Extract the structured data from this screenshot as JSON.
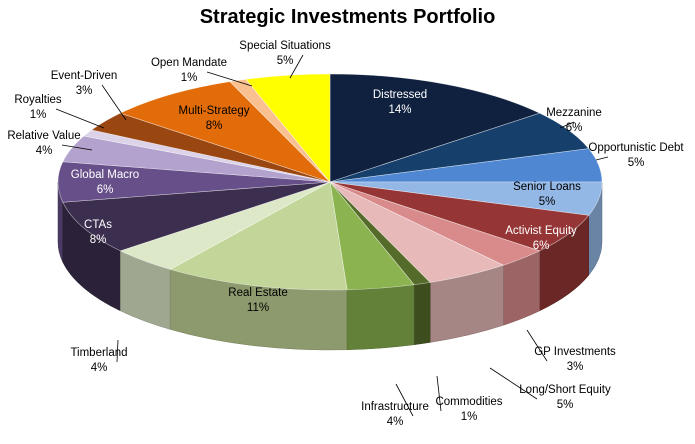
{
  "chart_data": {
    "type": "pie",
    "title": "Strategic Investments Portfolio",
    "slices": [
      {
        "label": "Distressed",
        "value": 14,
        "value_label": "14%",
        "color": "#10213f"
      },
      {
        "label": "Mezzanine",
        "value": 6,
        "value_label": "6%",
        "color": "#173f6c"
      },
      {
        "label": "Opportunistic Debt",
        "value": 5,
        "value_label": "5%",
        "color": "#4f87d2"
      },
      {
        "label": "Senior Loans",
        "value": 5,
        "value_label": "5%",
        "color": "#93b8e6"
      },
      {
        "label": "Activist Equity",
        "value": 6,
        "value_label": "6%",
        "color": "#953535"
      },
      {
        "label": "GP Investments",
        "value": 3,
        "value_label": "3%",
        "color": "#d98b8b"
      },
      {
        "label": "Long/Short Equity",
        "value": 5,
        "value_label": "5%",
        "color": "#e7b9b9"
      },
      {
        "label": "Commodities",
        "value": 1,
        "value_label": "1%",
        "color": "#556b2a"
      },
      {
        "label": "Infrastructure",
        "value": 4,
        "value_label": "4%",
        "color": "#8bb34f"
      },
      {
        "label": "Real Estate",
        "value": 11,
        "value_label": "11%",
        "color": "#c3d699"
      },
      {
        "label": "Timberland",
        "value": 4,
        "value_label": "4%",
        "color": "#dde8c8"
      },
      {
        "label": "CTAs",
        "value": 8,
        "value_label": "8%",
        "color": "#3c2e4e"
      },
      {
        "label": "Global Macro",
        "value": 6,
        "value_label": "6%",
        "color": "#67508a"
      },
      {
        "label": "Relative Value",
        "value": 4,
        "value_label": "4%",
        "color": "#b2a2cd"
      },
      {
        "label": "Royalties",
        "value": 1,
        "value_label": "1%",
        "color": "#dcd3e9"
      },
      {
        "label": "Event-Driven",
        "value": 3,
        "value_label": "3%",
        "color": "#9a4611"
      },
      {
        "label": "Multi-Strategy",
        "value": 8,
        "value_label": "8%",
        "color": "#e36c0a"
      },
      {
        "label": "Open Mandate",
        "value": 1,
        "value_label": "1%",
        "color": "#fac08f"
      },
      {
        "label": "Special Situations",
        "value": 5,
        "value_label": "5%",
        "color": "#ffff00"
      }
    ]
  }
}
